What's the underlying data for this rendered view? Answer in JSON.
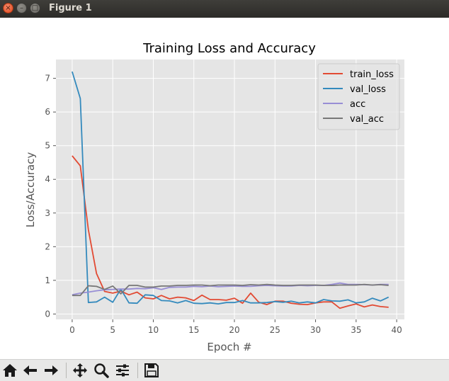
{
  "window": {
    "title": "Figure 1"
  },
  "icons": {
    "close": "close-icon",
    "minimize": "minimize-icon",
    "maximize": "maximize-icon",
    "home": "home-icon",
    "back": "arrow-left-icon",
    "forward": "arrow-right-icon",
    "pan": "move-icon",
    "zoom": "magnifier-icon",
    "configure": "sliders-icon",
    "save": "floppy-disk-icon"
  },
  "colors": {
    "train_loss": "#e24a33",
    "val_loss": "#348abd",
    "acc": "#988ed5",
    "val_acc": "#777777",
    "axes_bg": "#e5e5e5",
    "grid": "#ffffff",
    "titlebar": "#3c3b37"
  },
  "chart_data": {
    "type": "line",
    "title": "Training Loss and Accuracy",
    "xlabel": "Epoch #",
    "ylabel": "Loss/Accuracy",
    "xlim": [
      -2,
      40.95
    ],
    "ylim": [
      -0.16,
      7.56
    ],
    "xticks": [
      0,
      5,
      10,
      15,
      20,
      25,
      30,
      35,
      40
    ],
    "yticks": [
      0,
      1,
      2,
      3,
      4,
      5,
      6,
      7
    ],
    "grid": true,
    "legend_position": "top-right",
    "x": [
      0,
      1,
      2,
      3,
      4,
      5,
      6,
      7,
      8,
      9,
      10,
      11,
      12,
      13,
      14,
      15,
      16,
      17,
      18,
      19,
      20,
      21,
      22,
      23,
      24,
      25,
      26,
      27,
      28,
      29,
      30,
      31,
      32,
      33,
      34,
      35,
      36,
      37,
      38,
      39
    ],
    "series": [
      {
        "name": "train_loss",
        "color": "#e24a33",
        "values": [
          4.7,
          4.4,
          2.5,
          1.2,
          0.67,
          0.62,
          0.68,
          0.57,
          0.65,
          0.48,
          0.45,
          0.55,
          0.45,
          0.5,
          0.48,
          0.4,
          0.56,
          0.43,
          0.43,
          0.41,
          0.47,
          0.32,
          0.62,
          0.35,
          0.28,
          0.38,
          0.38,
          0.32,
          0.29,
          0.28,
          0.33,
          0.36,
          0.36,
          0.17,
          0.24,
          0.3,
          0.21,
          0.27,
          0.22,
          0.2
        ]
      },
      {
        "name": "val_loss",
        "color": "#348abd",
        "values": [
          7.2,
          6.4,
          0.34,
          0.36,
          0.5,
          0.35,
          0.74,
          0.33,
          0.32,
          0.57,
          0.55,
          0.4,
          0.39,
          0.33,
          0.4,
          0.32,
          0.31,
          0.33,
          0.3,
          0.34,
          0.34,
          0.4,
          0.33,
          0.33,
          0.34,
          0.37,
          0.35,
          0.38,
          0.33,
          0.36,
          0.33,
          0.43,
          0.39,
          0.38,
          0.42,
          0.33,
          0.36,
          0.47,
          0.39,
          0.5
        ]
      },
      {
        "name": "acc",
        "color": "#988ed5",
        "values": [
          0.57,
          0.62,
          0.65,
          0.69,
          0.72,
          0.73,
          0.74,
          0.74,
          0.76,
          0.75,
          0.78,
          0.73,
          0.79,
          0.8,
          0.8,
          0.82,
          0.81,
          0.83,
          0.81,
          0.82,
          0.83,
          0.82,
          0.82,
          0.84,
          0.85,
          0.84,
          0.83,
          0.83,
          0.85,
          0.84,
          0.85,
          0.85,
          0.88,
          0.92,
          0.88,
          0.88,
          0.87,
          0.86,
          0.88,
          0.88
        ]
      },
      {
        "name": "val_acc",
        "color": "#777777",
        "values": [
          0.55,
          0.55,
          0.84,
          0.82,
          0.73,
          0.83,
          0.6,
          0.85,
          0.85,
          0.8,
          0.8,
          0.83,
          0.83,
          0.85,
          0.85,
          0.86,
          0.86,
          0.84,
          0.86,
          0.86,
          0.86,
          0.85,
          0.87,
          0.86,
          0.88,
          0.86,
          0.85,
          0.85,
          0.86,
          0.86,
          0.86,
          0.85,
          0.85,
          0.86,
          0.86,
          0.86,
          0.88,
          0.86,
          0.87,
          0.85
        ]
      }
    ]
  }
}
